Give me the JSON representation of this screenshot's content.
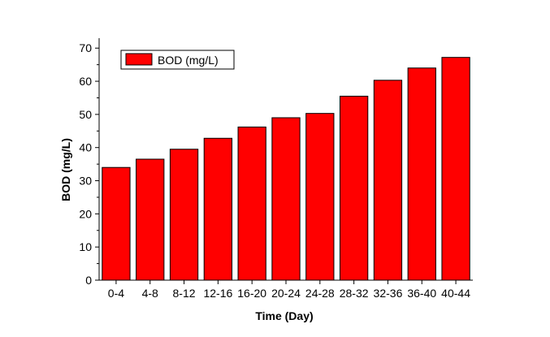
{
  "chart_data": {
    "type": "bar",
    "categories": [
      "0-4",
      "4-8",
      "8-12",
      "12-16",
      "16-20",
      "20-24",
      "24-28",
      "28-32",
      "32-36",
      "36-40",
      "40-44"
    ],
    "series": [
      {
        "name": "BOD (mg/L)",
        "color": "#ff0000",
        "values": [
          34,
          36.5,
          39.5,
          42.8,
          46.2,
          49,
          50.3,
          55.5,
          60.3,
          64,
          67.2
        ]
      }
    ],
    "xlabel": "Time (Day)",
    "ylabel": "BOD (mg/L)",
    "ylim": [
      0,
      73
    ],
    "yticks": [
      0,
      10,
      20,
      30,
      40,
      50,
      60,
      70
    ],
    "grid": false,
    "legend_position": "top-left"
  }
}
